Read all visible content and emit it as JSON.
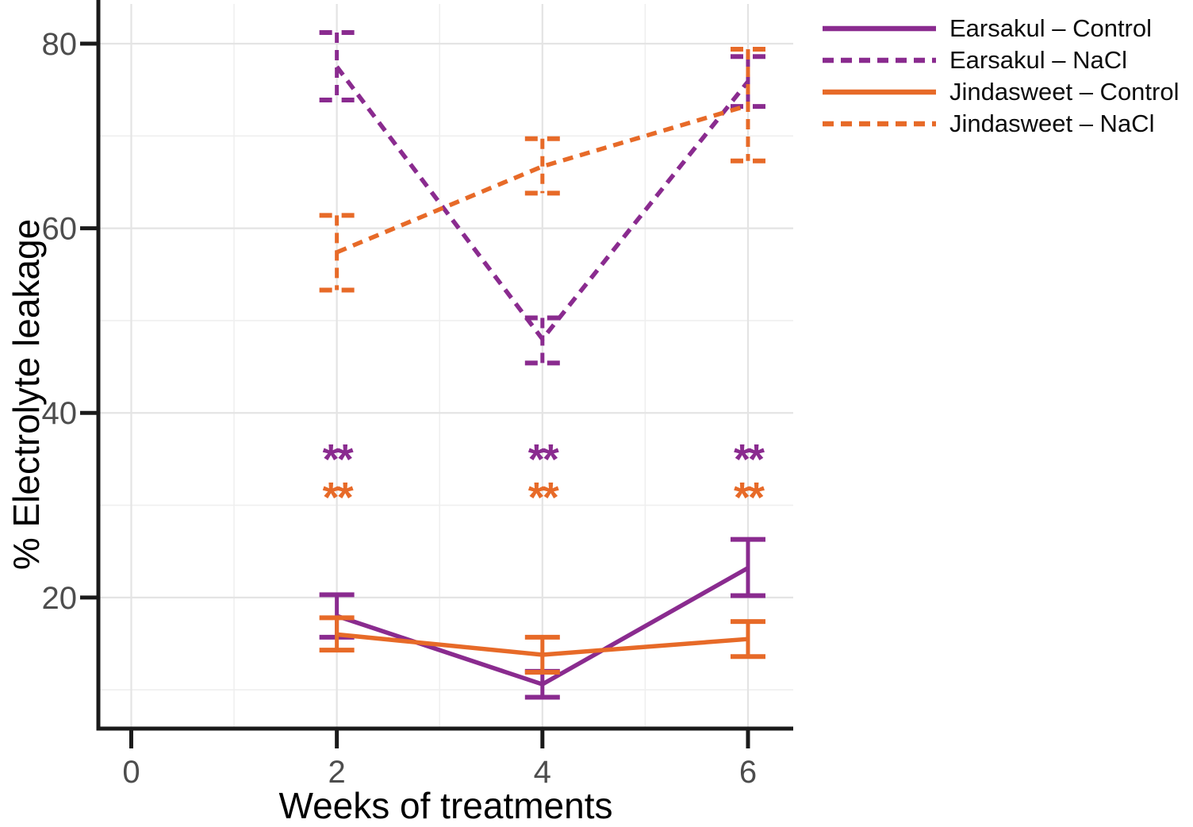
{
  "chart_data": {
    "type": "line",
    "title": "",
    "xlabel": "Weeks of treatments",
    "ylabel": "% Electrolyte leakage",
    "x": [
      2,
      4,
      6
    ],
    "xticks": [
      0,
      2,
      4,
      6
    ],
    "yticks": [
      20,
      40,
      60,
      80
    ],
    "x_minor_grid": [
      1,
      3,
      5
    ],
    "y_minor_grid": [
      10,
      30,
      50,
      70
    ],
    "xlim": [
      -0.32,
      6.44
    ],
    "ylim": [
      5.8,
      84.3
    ],
    "grid": "major and minor, light gray, white background",
    "legend_position": "top-right",
    "series": [
      {
        "name": "Earsakul – Control",
        "style": "solid",
        "color": "#8A2B8F",
        "values": [
          18.0,
          10.6,
          23.2
        ],
        "err_low": [
          15.7,
          9.2,
          20.2
        ],
        "err_high": [
          20.3,
          12.0,
          26.3
        ]
      },
      {
        "name": "Earsakul – NaCl",
        "style": "dashed",
        "color": "#8A2B8F",
        "values": [
          77.5,
          48.0,
          75.9
        ],
        "err_low": [
          73.9,
          45.4,
          73.2
        ],
        "err_high": [
          81.2,
          50.3,
          78.6
        ]
      },
      {
        "name": "Jindasweet – Control",
        "style": "solid",
        "color": "#E76A28",
        "values": [
          16.0,
          13.8,
          15.5
        ],
        "err_low": [
          14.3,
          11.9,
          13.6
        ],
        "err_high": [
          17.8,
          15.7,
          17.4
        ]
      },
      {
        "name": "Jindasweet – NaCl",
        "style": "dashed",
        "color": "#E76A28",
        "values": [
          57.4,
          66.7,
          73.3
        ],
        "err_low": [
          53.3,
          63.8,
          67.3
        ],
        "err_high": [
          61.4,
          69.7,
          79.4
        ]
      }
    ],
    "annotations": [
      {
        "text": "**",
        "x": 2,
        "y": 35.8,
        "color": "#8A2B8F"
      },
      {
        "text": "**",
        "x": 2,
        "y": 31.7,
        "color": "#E76A28"
      },
      {
        "text": "**",
        "x": 4,
        "y": 35.8,
        "color": "#8A2B8F"
      },
      {
        "text": "**",
        "x": 4,
        "y": 31.7,
        "color": "#E76A28"
      },
      {
        "text": "**",
        "x": 6,
        "y": 35.8,
        "color": "#8A2B8F"
      },
      {
        "text": "**",
        "x": 6,
        "y": 31.7,
        "color": "#E76A28"
      }
    ]
  }
}
